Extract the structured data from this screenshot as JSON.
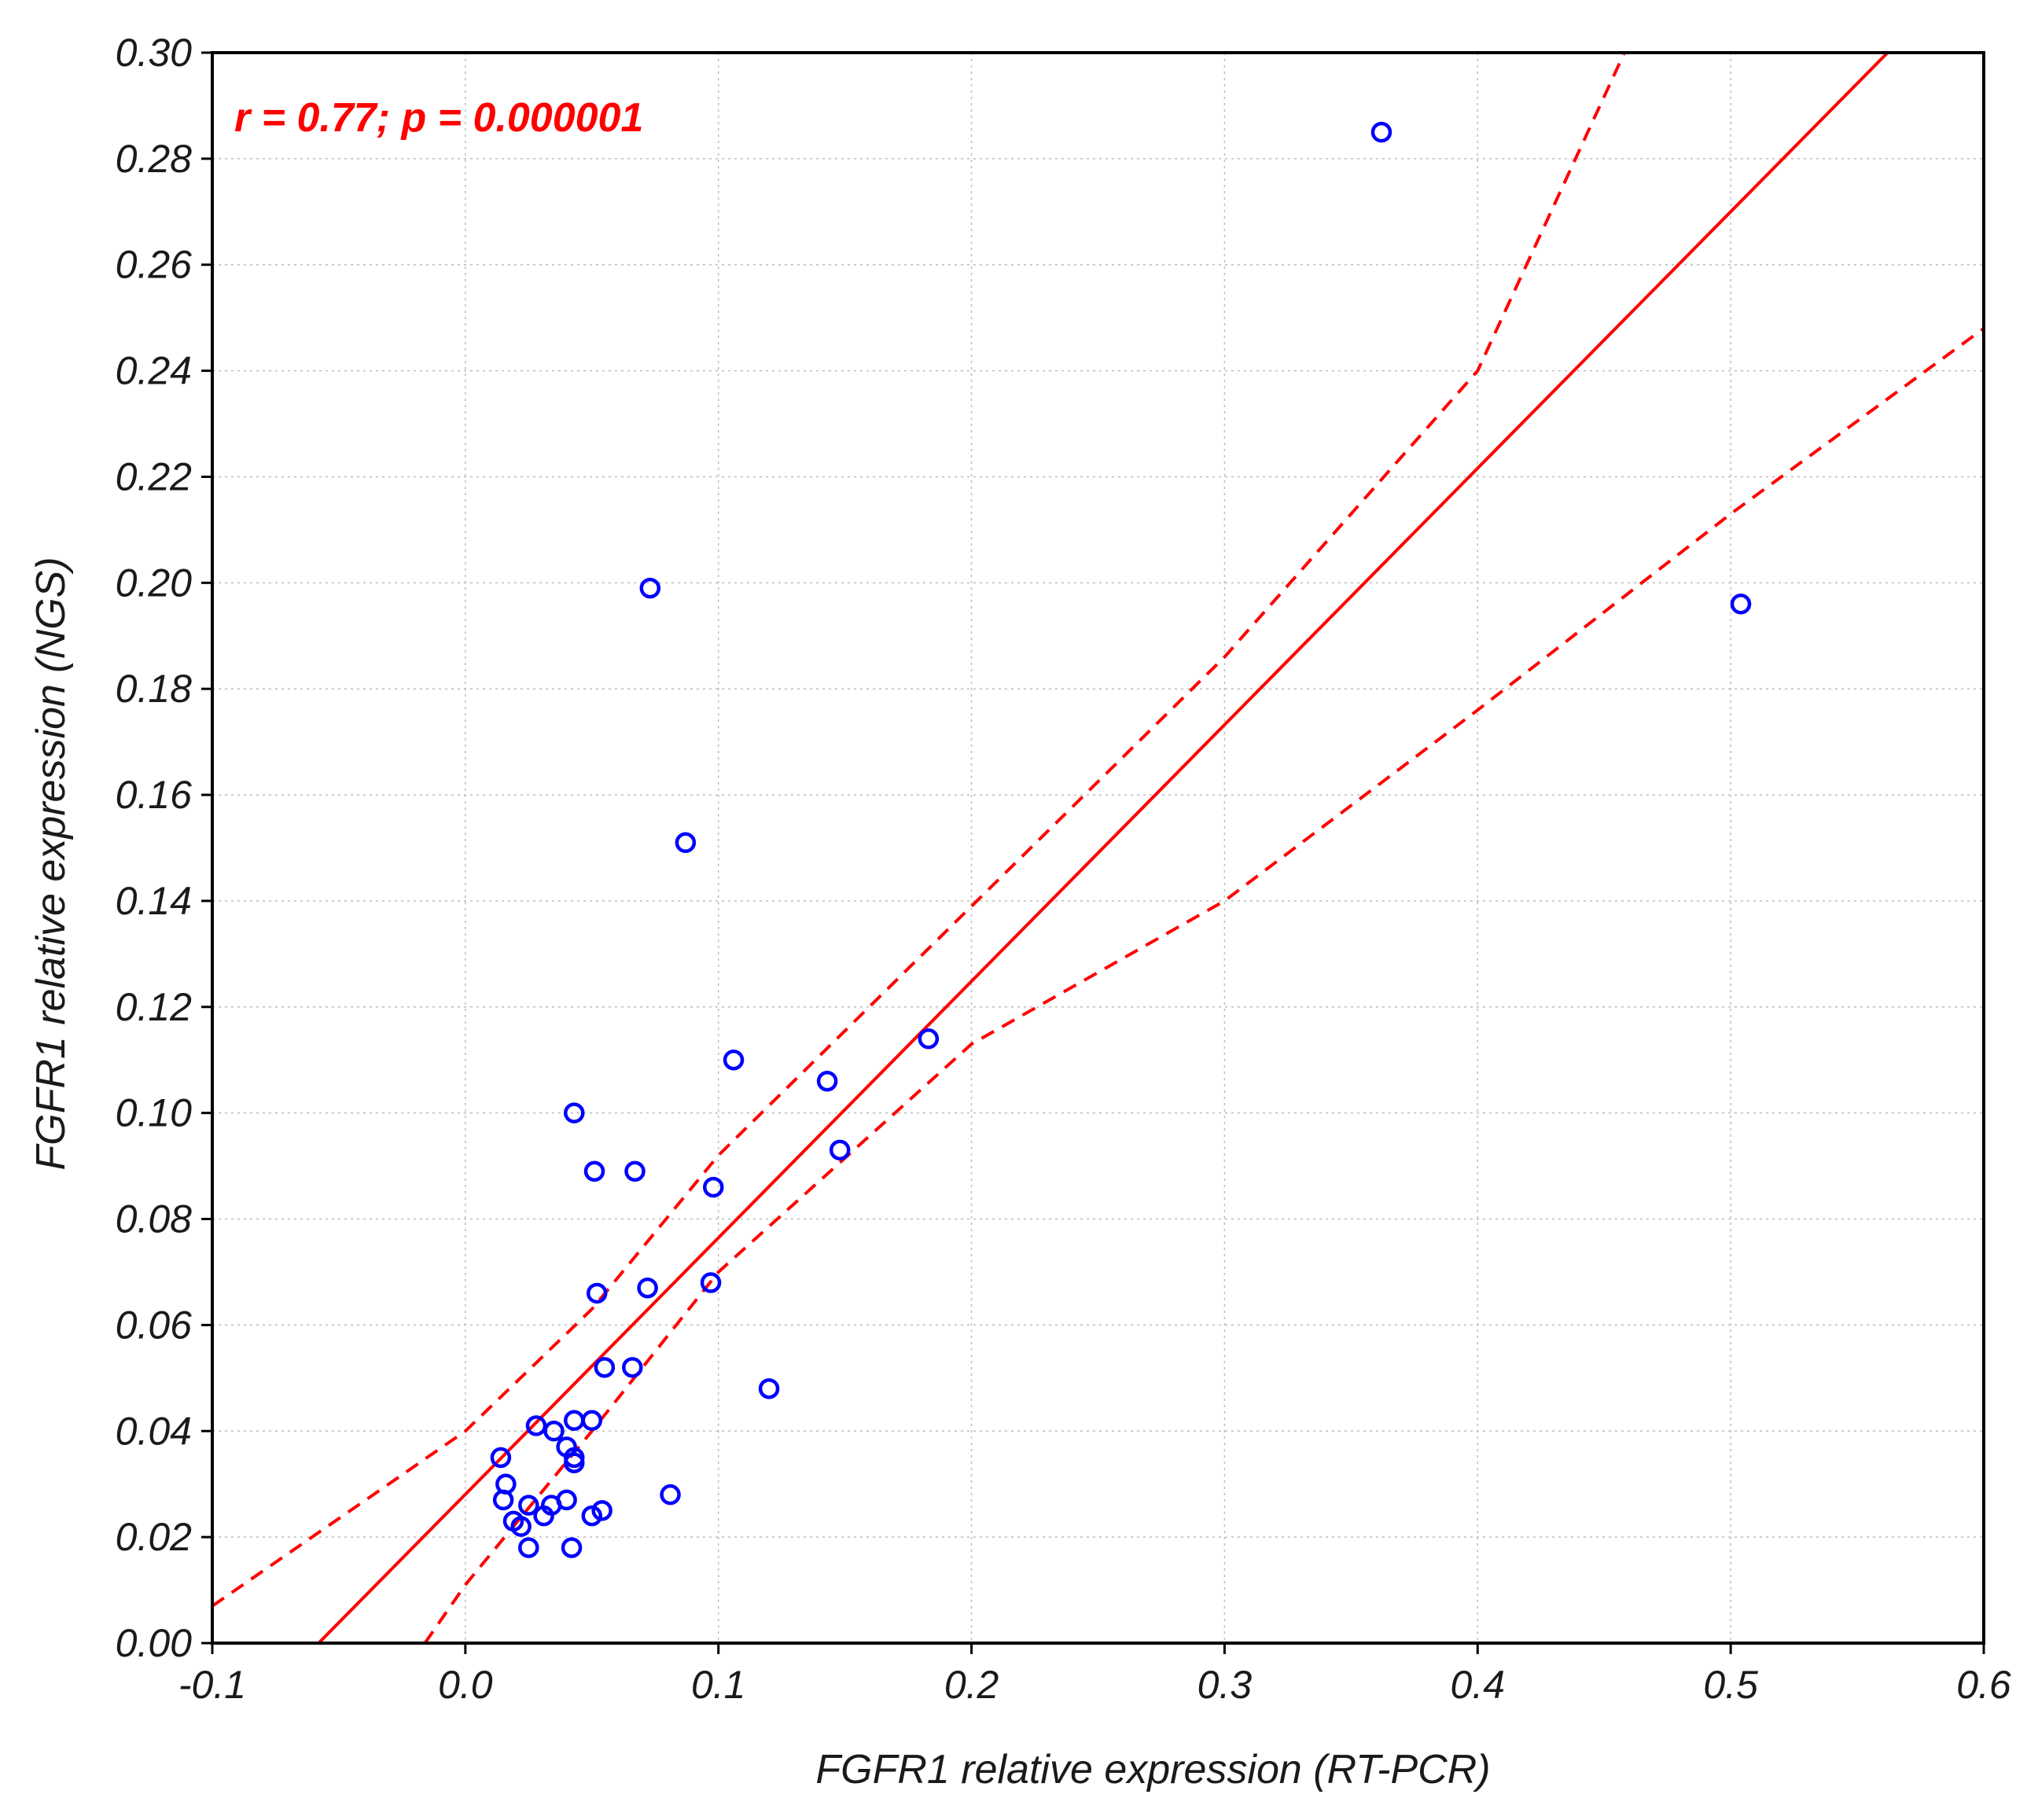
{
  "chart_data": {
    "type": "scatter",
    "title": "",
    "xlabel": "FGFR1 relative expression (RT-PCR)",
    "ylabel": "FGFR1 relative expression (NGS)",
    "xlim": [
      -0.1,
      0.6
    ],
    "ylim": [
      0.0,
      0.3
    ],
    "x_ticks": [
      -0.1,
      0.0,
      0.1,
      0.2,
      0.3,
      0.4,
      0.5,
      0.6
    ],
    "x_tick_labels": [
      "-0.1",
      "0.0",
      "0.1",
      "0.2",
      "0.3",
      "0.4",
      "0.5",
      "0.6"
    ],
    "y_ticks": [
      0.0,
      0.02,
      0.04,
      0.06,
      0.08,
      0.1,
      0.12,
      0.14,
      0.16,
      0.18,
      0.2,
      0.22,
      0.24,
      0.26,
      0.28,
      0.3
    ],
    "y_tick_labels": [
      "0.00",
      "0.02",
      "0.04",
      "0.06",
      "0.08",
      "0.10",
      "0.12",
      "0.14",
      "0.16",
      "0.18",
      "0.20",
      "0.22",
      "0.24",
      "0.26",
      "0.28",
      "0.30"
    ],
    "grid": true,
    "annotation": "r = 0.77; p = 0.000001",
    "colors": {
      "points": "#0000ff",
      "fit": "#ff0000",
      "annotation": "#ff0000"
    },
    "points": [
      {
        "x": 0.362,
        "y": 0.285
      },
      {
        "x": 0.504,
        "y": 0.196
      },
      {
        "x": 0.073,
        "y": 0.199
      },
      {
        "x": 0.087,
        "y": 0.151
      },
      {
        "x": 0.183,
        "y": 0.114
      },
      {
        "x": 0.106,
        "y": 0.11
      },
      {
        "x": 0.143,
        "y": 0.106
      },
      {
        "x": 0.148,
        "y": 0.093
      },
      {
        "x": 0.043,
        "y": 0.1
      },
      {
        "x": 0.051,
        "y": 0.089
      },
      {
        "x": 0.067,
        "y": 0.089
      },
      {
        "x": 0.098,
        "y": 0.086
      },
      {
        "x": 0.097,
        "y": 0.068
      },
      {
        "x": 0.072,
        "y": 0.067
      },
      {
        "x": 0.052,
        "y": 0.066
      },
      {
        "x": 0.055,
        "y": 0.052
      },
      {
        "x": 0.066,
        "y": 0.052
      },
      {
        "x": 0.12,
        "y": 0.048
      },
      {
        "x": 0.028,
        "y": 0.041
      },
      {
        "x": 0.043,
        "y": 0.042
      },
      {
        "x": 0.05,
        "y": 0.042
      },
      {
        "x": 0.035,
        "y": 0.04
      },
      {
        "x": 0.04,
        "y": 0.037
      },
      {
        "x": 0.043,
        "y": 0.035
      },
      {
        "x": 0.043,
        "y": 0.034
      },
      {
        "x": 0.014,
        "y": 0.035
      },
      {
        "x": 0.016,
        "y": 0.03
      },
      {
        "x": 0.015,
        "y": 0.027
      },
      {
        "x": 0.025,
        "y": 0.026
      },
      {
        "x": 0.034,
        "y": 0.026
      },
      {
        "x": 0.04,
        "y": 0.027
      },
      {
        "x": 0.031,
        "y": 0.024
      },
      {
        "x": 0.019,
        "y": 0.023
      },
      {
        "x": 0.022,
        "y": 0.022
      },
      {
        "x": 0.05,
        "y": 0.024
      },
      {
        "x": 0.054,
        "y": 0.025
      },
      {
        "x": 0.081,
        "y": 0.028
      },
      {
        "x": 0.025,
        "y": 0.018
      },
      {
        "x": 0.042,
        "y": 0.018
      }
    ],
    "regression_line": [
      {
        "x": -0.058,
        "y": 0.0
      },
      {
        "x": 0.562,
        "y": 0.3
      }
    ],
    "confidence_upper": [
      {
        "x": -0.1,
        "y": 0.007
      },
      {
        "x": 0.0,
        "y": 0.04
      },
      {
        "x": 0.05,
        "y": 0.063
      },
      {
        "x": 0.1,
        "y": 0.092
      },
      {
        "x": 0.2,
        "y": 0.139
      },
      {
        "x": 0.3,
        "y": 0.186
      },
      {
        "x": 0.4,
        "y": 0.24
      },
      {
        "x": 0.458,
        "y": 0.3
      }
    ],
    "confidence_lower": [
      {
        "x": -0.016,
        "y": 0.0
      },
      {
        "x": 0.0,
        "y": 0.011
      },
      {
        "x": 0.05,
        "y": 0.04
      },
      {
        "x": 0.1,
        "y": 0.07
      },
      {
        "x": 0.2,
        "y": 0.113
      },
      {
        "x": 0.3,
        "y": 0.14
      },
      {
        "x": 0.4,
        "y": 0.176
      },
      {
        "x": 0.5,
        "y": 0.213
      },
      {
        "x": 0.6,
        "y": 0.248
      }
    ]
  }
}
